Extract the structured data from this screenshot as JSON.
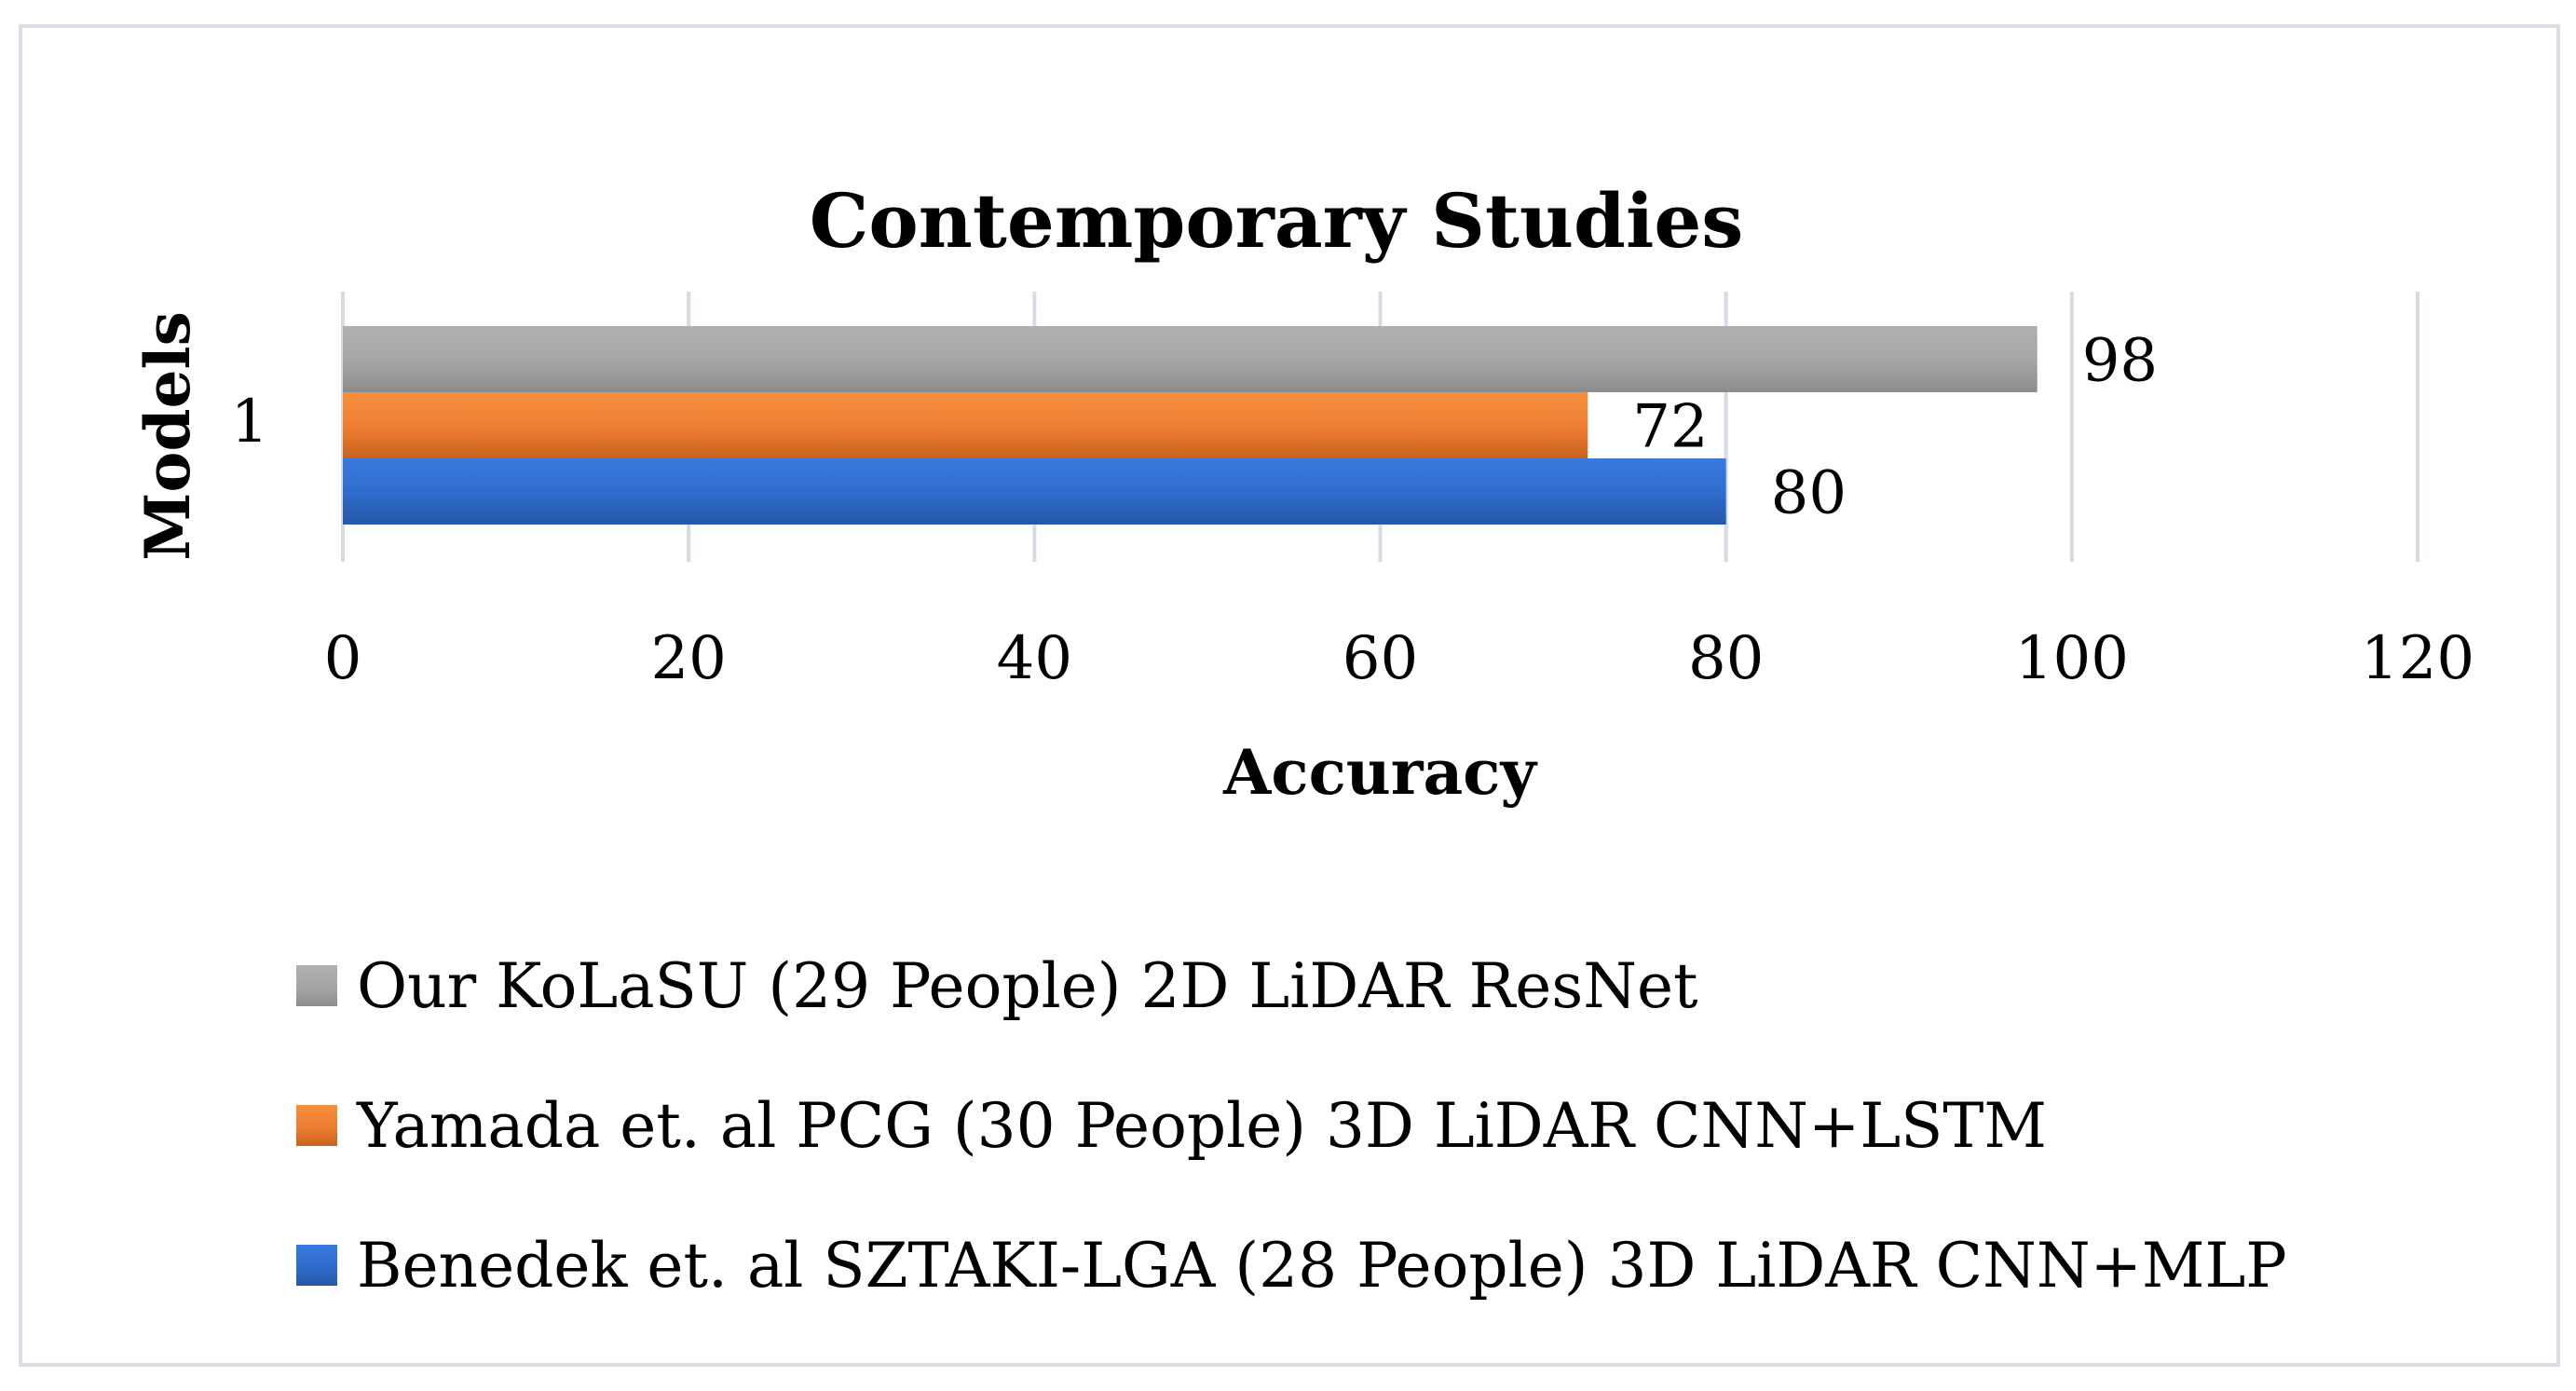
{
  "chart_data": {
    "type": "bar",
    "orientation": "horizontal",
    "title": "Contemporary Studies",
    "xlabel": "Accuracy",
    "ylabel": "Models",
    "categories": [
      "1"
    ],
    "xlim": [
      0,
      120
    ],
    "xticks": [
      0,
      20,
      40,
      60,
      80,
      100,
      120
    ],
    "grid": true,
    "legend_position": "bottom",
    "series": [
      {
        "name": "Our KoLaSU (29 People) 2D LiDAR ResNet",
        "values": [
          98
        ],
        "color": "#a5a5a5"
      },
      {
        "name": "Yamada et. al PCG (30 People) 3D LiDAR CNN+LSTM",
        "values": [
          72
        ],
        "color": "#ed7d31"
      },
      {
        "name": "Benedek et. al SZTAKI-LGA (28 People) 3D LiDAR CNN+MLP",
        "values": [
          80
        ],
        "color": "#4472c4"
      }
    ]
  }
}
